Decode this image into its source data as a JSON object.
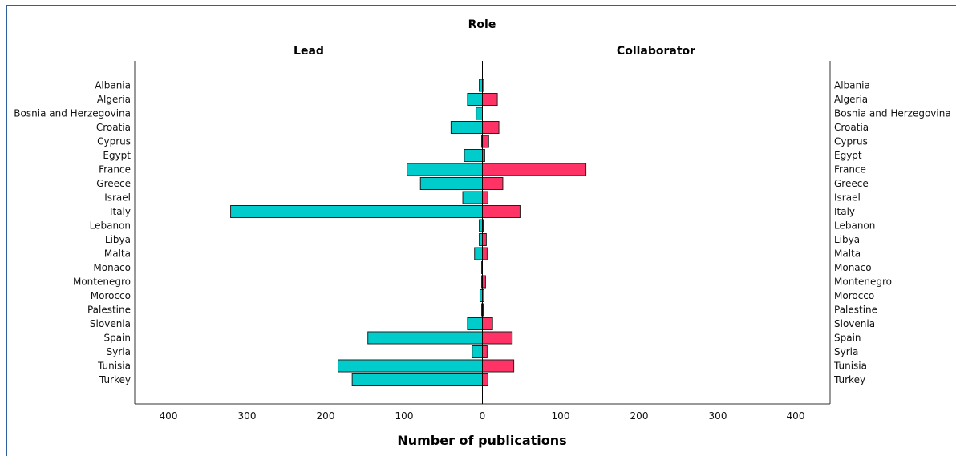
{
  "chart_data": {
    "type": "bar",
    "title": "Role",
    "xlabel": "Number of publications",
    "panels": [
      "Lead",
      "Collaborator"
    ],
    "xlim": [
      0,
      440
    ],
    "x_ticks": [
      400,
      300,
      200,
      100,
      0,
      100,
      200,
      300,
      400
    ],
    "categories": [
      "Albania",
      "Algeria",
      "Bosnia and Herzegovina",
      "Croatia",
      "Cyprus",
      "Egypt",
      "France",
      "Greece",
      "Israel",
      "Italy",
      "Lebanon",
      "Libya",
      "Malta",
      "Monaco",
      "Montenegro",
      "Morocco",
      "Palestine",
      "Slovenia",
      "Spain",
      "Syria",
      "Tunisia",
      "Turkey"
    ],
    "series": [
      {
        "name": "Lead",
        "color": "#00cccc",
        "values": [
          4,
          19,
          8,
          40,
          1,
          23,
          96,
          79,
          25,
          321,
          4,
          4,
          10,
          1,
          1,
          3,
          1,
          19,
          146,
          13,
          184,
          166
        ]
      },
      {
        "name": "Collaborator",
        "color": "#ff3366",
        "values": [
          2,
          19,
          0,
          21,
          8,
          3,
          132,
          26,
          7,
          48,
          1,
          5,
          6,
          0,
          4,
          2,
          1,
          13,
          38,
          6,
          40,
          7
        ]
      }
    ],
    "grid": false
  }
}
